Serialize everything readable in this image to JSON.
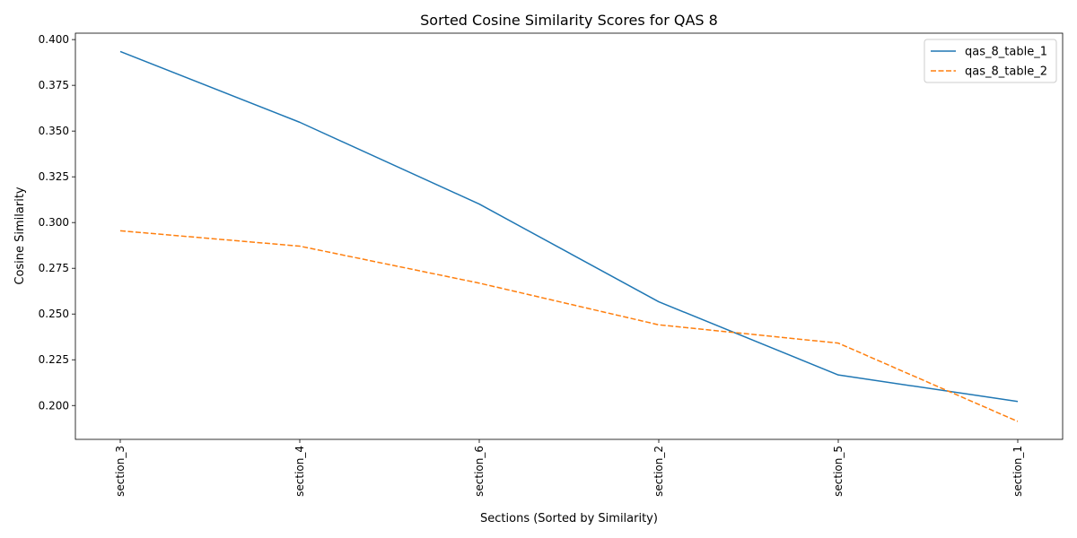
{
  "chart_data": {
    "type": "line",
    "title": "Sorted Cosine Similarity Scores for QAS 8",
    "xlabel": "Sections (Sorted by Similarity)",
    "ylabel": "Cosine Similarity",
    "categories": [
      "section_3",
      "section_4",
      "section_6",
      "section_2",
      "section_5",
      "section_1"
    ],
    "ylim": [
      0.1815,
      0.4035
    ],
    "yticks": [
      0.2,
      0.225,
      0.25,
      0.275,
      0.3,
      0.325,
      0.35,
      0.375,
      0.4
    ],
    "ytick_labels": [
      "0.200",
      "0.225",
      "0.250",
      "0.275",
      "0.300",
      "0.325",
      "0.350",
      "0.375",
      "0.400"
    ],
    "grid": false,
    "legend_position": "top-right",
    "series": [
      {
        "name": "qas_8_table_1",
        "values": [
          0.3935,
          0.3548,
          0.3101,
          0.2567,
          0.2167,
          0.2022
        ],
        "color": "#1f77b4",
        "style": "solid"
      },
      {
        "name": "qas_8_table_2",
        "values": [
          0.2955,
          0.2871,
          0.2669,
          0.2441,
          0.2341,
          0.1913
        ],
        "color": "#ff7f0e",
        "style": "dashed"
      }
    ]
  }
}
